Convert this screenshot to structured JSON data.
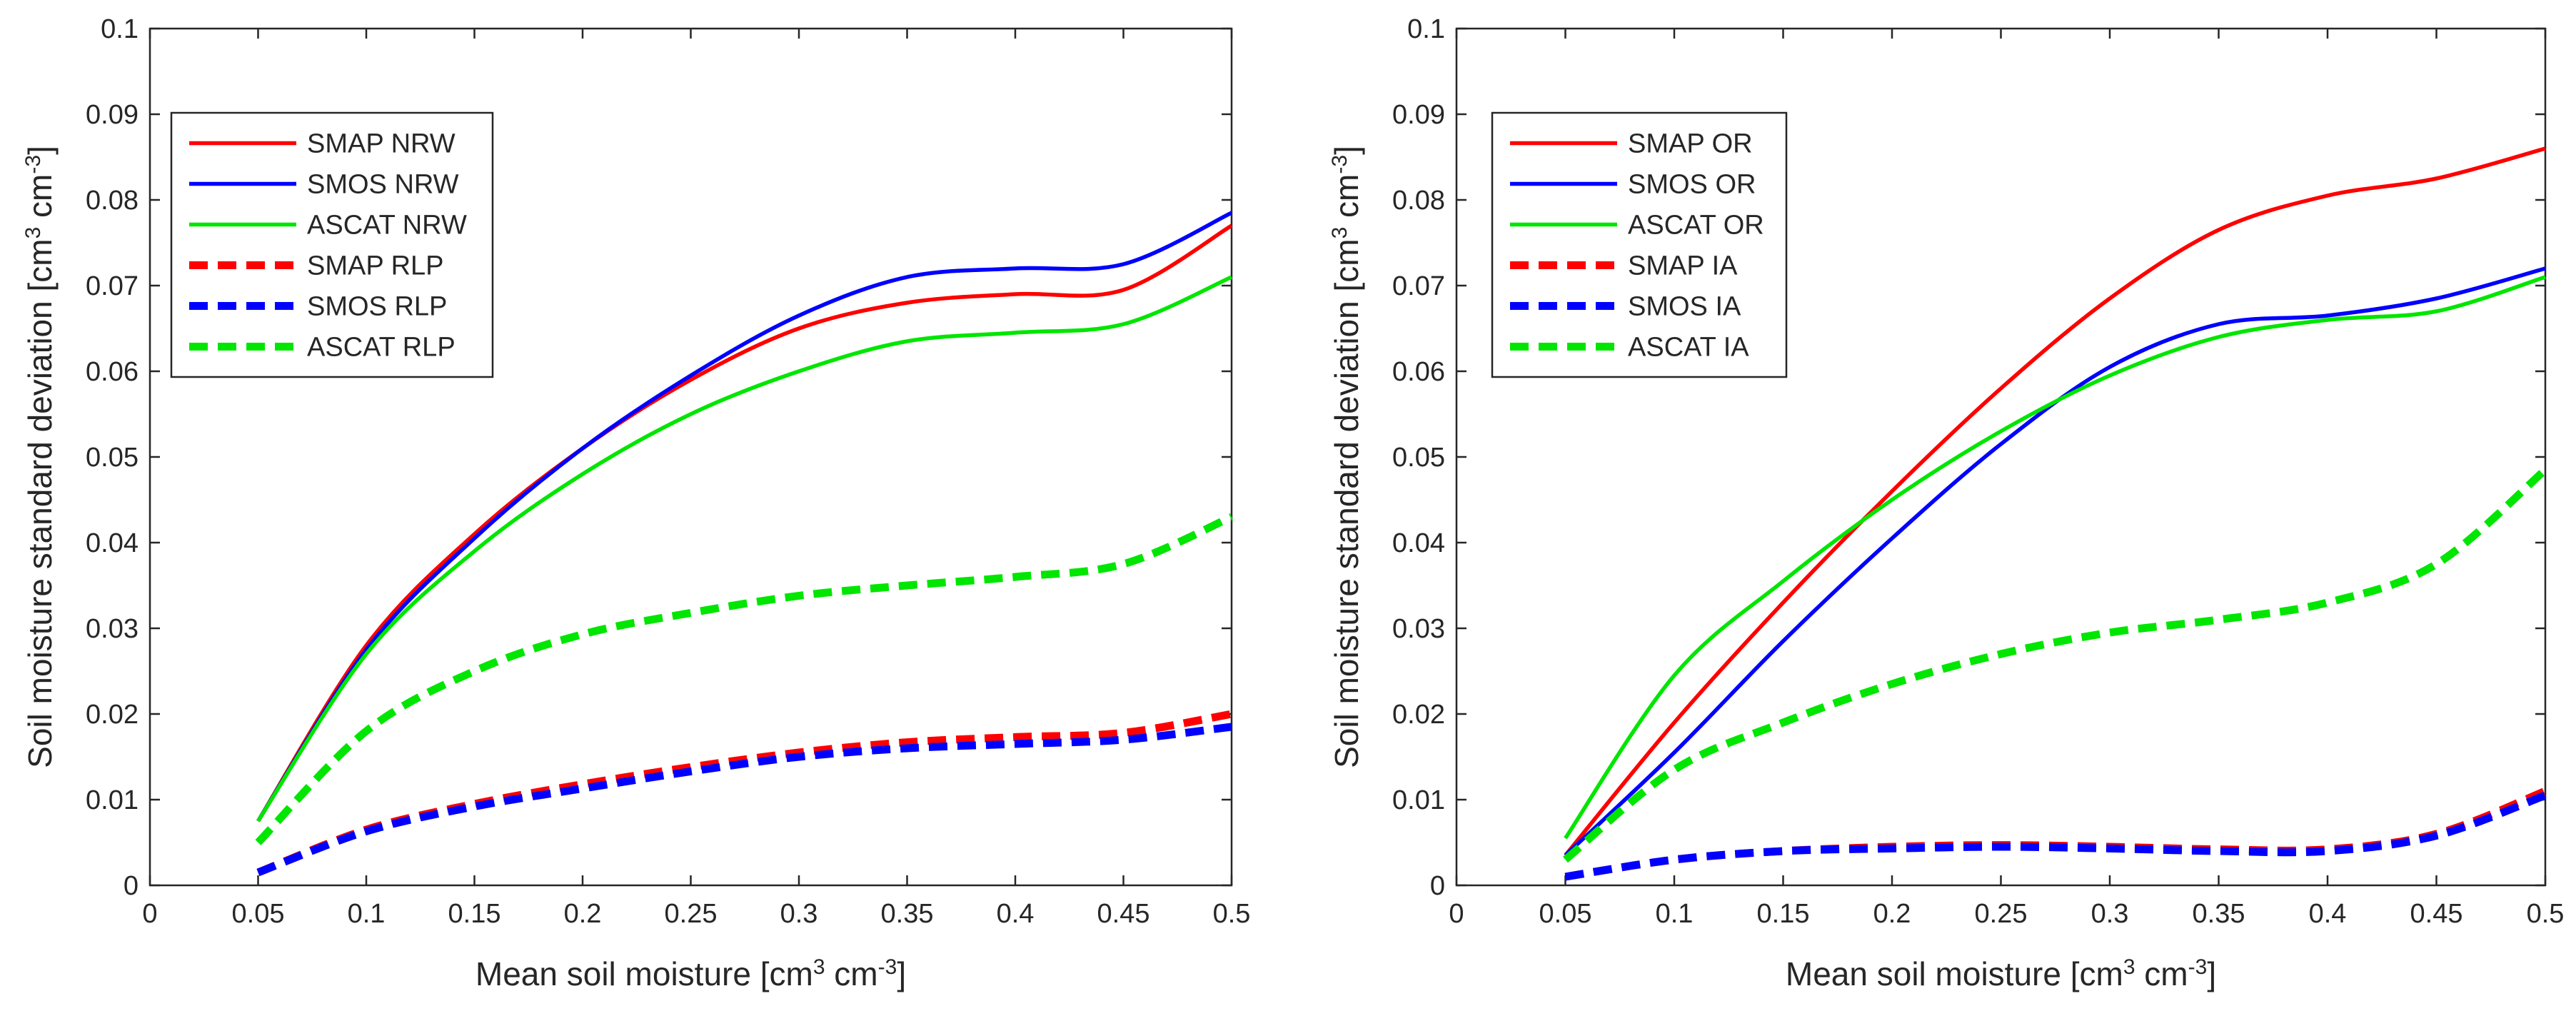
{
  "chart_data": [
    {
      "type": "line",
      "xlabel": {
        "prefix": "Mean soil moisture [cm",
        "sup1": "3",
        "mid": " cm",
        "sup2": "-3",
        "suffix": "]"
      },
      "ylabel": {
        "prefix": "Soil moisture standard deviation [cm",
        "sup1": "3",
        "mid": " cm",
        "sup2": "-3",
        "suffix": "]"
      },
      "xlim": [
        0,
        0.5
      ],
      "ylim": [
        0,
        0.1
      ],
      "xticks": [
        0,
        0.05,
        0.1,
        0.15,
        0.2,
        0.25,
        0.3,
        0.35,
        0.4,
        0.45,
        0.5
      ],
      "xtick_labels": [
        "0",
        "0.05",
        "0.1",
        "0.15",
        "0.2",
        "0.25",
        "0.3",
        "0.35",
        "0.4",
        "0.45",
        "0.5"
      ],
      "yticks": [
        0,
        0.01,
        0.02,
        0.03,
        0.04,
        0.05,
        0.06,
        0.07,
        0.08,
        0.09,
        0.1
      ],
      "ytick_labels": [
        "0",
        "0.01",
        "0.02",
        "0.03",
        "0.04",
        "0.05",
        "0.06",
        "0.07",
        "0.08",
        "0.09",
        "0.1"
      ],
      "grid": false,
      "legend_position": "top-left",
      "x": [
        0.05,
        0.1,
        0.15,
        0.2,
        0.25,
        0.3,
        0.35,
        0.4,
        0.45,
        0.5
      ],
      "series": [
        {
          "name": "SMAP NRW",
          "color": "#ff0000",
          "style": "solid",
          "values": [
            0.0075,
            0.028,
            0.041,
            0.051,
            0.059,
            0.065,
            0.068,
            0.069,
            0.0695,
            0.077
          ]
        },
        {
          "name": "SMOS NRW",
          "color": "#0000ff",
          "style": "solid",
          "values": [
            0.0075,
            0.0275,
            0.0405,
            0.051,
            0.0595,
            0.0665,
            0.071,
            0.072,
            0.0725,
            0.0785
          ]
        },
        {
          "name": "ASCAT NRW",
          "color": "#00e600",
          "style": "solid",
          "values": [
            0.0075,
            0.027,
            0.039,
            0.048,
            0.055,
            0.06,
            0.0635,
            0.0645,
            0.0655,
            0.071
          ]
        },
        {
          "name": "SMAP RLP",
          "color": "#ff0000",
          "style": "dashed",
          "values": [
            0.0015,
            0.0065,
            0.0095,
            0.0118,
            0.0138,
            0.0155,
            0.0167,
            0.0173,
            0.0178,
            0.02
          ]
        },
        {
          "name": "SMOS RLP",
          "color": "#0000ff",
          "style": "dashed",
          "values": [
            0.0015,
            0.0063,
            0.0092,
            0.0113,
            0.0133,
            0.015,
            0.016,
            0.0165,
            0.017,
            0.0185
          ]
        },
        {
          "name": "ASCAT RLP",
          "color": "#00e600",
          "style": "dashed",
          "values": [
            0.005,
            0.018,
            0.025,
            0.0293,
            0.0318,
            0.0338,
            0.035,
            0.036,
            0.0375,
            0.043
          ]
        }
      ]
    },
    {
      "type": "line",
      "xlabel": {
        "prefix": "Mean soil moisture [cm",
        "sup1": "3",
        "mid": " cm",
        "sup2": "-3",
        "suffix": "]"
      },
      "ylabel": {
        "prefix": "Soil moisture standard deviation [cm",
        "sup1": "3",
        "mid": " cm",
        "sup2": "-3",
        "suffix": "]"
      },
      "xlim": [
        0,
        0.5
      ],
      "ylim": [
        0,
        0.1
      ],
      "xticks": [
        0,
        0.05,
        0.1,
        0.15,
        0.2,
        0.25,
        0.3,
        0.35,
        0.4,
        0.45,
        0.5
      ],
      "xtick_labels": [
        "0",
        "0.05",
        "0.1",
        "0.15",
        "0.2",
        "0.25",
        "0.3",
        "0.35",
        "0.4",
        "0.45",
        "0.5"
      ],
      "yticks": [
        0,
        0.01,
        0.02,
        0.03,
        0.04,
        0.05,
        0.06,
        0.07,
        0.08,
        0.09,
        0.1
      ],
      "ytick_labels": [
        "0",
        "0.01",
        "0.02",
        "0.03",
        "0.04",
        "0.05",
        "0.06",
        "0.07",
        "0.08",
        "0.09",
        "0.1"
      ],
      "grid": false,
      "legend_position": "top-left",
      "x": [
        0.05,
        0.1,
        0.15,
        0.2,
        0.25,
        0.3,
        0.35,
        0.4,
        0.45,
        0.5
      ],
      "series": [
        {
          "name": "SMAP OR",
          "color": "#ff0000",
          "style": "solid",
          "values": [
            0.0035,
            0.019,
            0.033,
            0.046,
            0.058,
            0.0685,
            0.0765,
            0.0805,
            0.0825,
            0.086
          ]
        },
        {
          "name": "SMOS OR",
          "color": "#0000ff",
          "style": "solid",
          "values": [
            0.0035,
            0.0155,
            0.0285,
            0.0405,
            0.0515,
            0.0605,
            0.0655,
            0.0665,
            0.0685,
            0.072
          ]
        },
        {
          "name": "ASCAT OR",
          "color": "#00e600",
          "style": "solid",
          "values": [
            0.0055,
            0.0245,
            0.0355,
            0.045,
            0.053,
            0.0595,
            0.064,
            0.066,
            0.067,
            0.071
          ]
        },
        {
          "name": "SMAP IA",
          "color": "#ff0000",
          "style": "dashed",
          "values": [
            0.001,
            0.003,
            0.004,
            0.0045,
            0.0047,
            0.0045,
            0.0042,
            0.0042,
            0.006,
            0.011
          ]
        },
        {
          "name": "SMOS IA",
          "color": "#0000ff",
          "style": "dashed",
          "values": [
            0.001,
            0.003,
            0.004,
            0.0043,
            0.0045,
            0.0043,
            0.004,
            0.004,
            0.0058,
            0.0105
          ]
        },
        {
          "name": "ASCAT IA",
          "color": "#00e600",
          "style": "dashed",
          "values": [
            0.003,
            0.0135,
            0.019,
            0.0235,
            0.027,
            0.0295,
            0.031,
            0.033,
            0.0375,
            0.0485
          ]
        }
      ]
    }
  ]
}
